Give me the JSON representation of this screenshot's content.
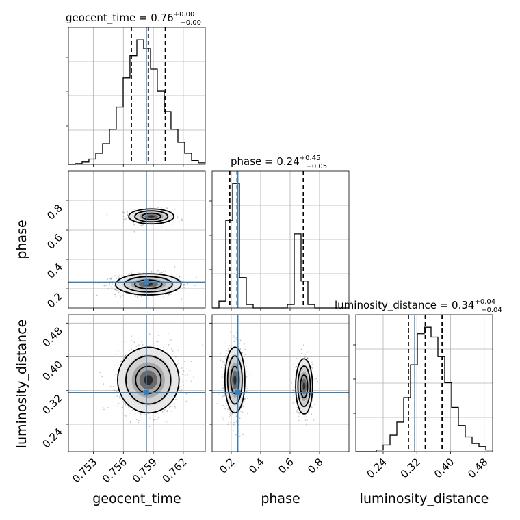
{
  "chart_data": {
    "type": "corner",
    "parameters": [
      "geocent_time",
      "phase",
      "luminosity_distance"
    ],
    "truths": {
      "geocent_time": 0.7583,
      "phase": 0.245,
      "luminosity_distance": 0.315
    },
    "colors": {
      "truth": "#3a7fb8",
      "contour": "#000000",
      "grid": "#b0b0b0"
    },
    "axes": {
      "geocent_time": {
        "range": [
          0.7505,
          0.7642
        ],
        "ticks": [
          0.753,
          0.756,
          0.759,
          0.762
        ],
        "tick_labels": [
          "0.753",
          "0.756",
          "0.759",
          "0.762"
        ]
      },
      "phase": {
        "range": [
          0.07,
          1.0
        ],
        "ticks": [
          0.2,
          0.4,
          0.6,
          0.8
        ],
        "tick_labels": [
          "0.2",
          "0.4",
          "0.6",
          "0.8"
        ]
      },
      "luminosity_distance": {
        "range": [
          0.175,
          0.5
        ],
        "ticks": [
          0.24,
          0.32,
          0.4,
          0.48
        ],
        "tick_labels": [
          "0.24",
          "0.32",
          "0.40",
          "0.48"
        ]
      }
    },
    "marginals": [
      {
        "param": "geocent_time",
        "title_base": "geocent_time = 0.76",
        "title_sup": "+0.00",
        "title_sub": "−0.00",
        "quantiles": [
          0.7568,
          0.7585,
          0.7602
        ],
        "bin_edges": [
          0.7505,
          0.75118,
          0.75187,
          0.75255,
          0.75324,
          0.75392,
          0.75461,
          0.75529,
          0.75598,
          0.75666,
          0.75735,
          0.75803,
          0.75872,
          0.7594,
          0.76009,
          0.76077,
          0.76146,
          0.76214,
          0.76283,
          0.76351,
          0.7642
        ],
        "counts": [
          0,
          1,
          3,
          7,
          15,
          28,
          48,
          78,
          118,
          148,
          170,
          158,
          130,
          100,
          72,
          48,
          30,
          15,
          5,
          2
        ]
      },
      {
        "param": "phase",
        "title_base": "phase = 0.24",
        "title_sup": "+0.45",
        "title_sub": "−0.05",
        "quantiles": [
          0.19,
          0.24,
          0.69
        ],
        "bin_edges": [
          0.07,
          0.1165,
          0.163,
          0.2095,
          0.256,
          0.3025,
          0.349,
          0.3955,
          0.442,
          0.4885,
          0.535,
          0.5815,
          0.628,
          0.6745,
          0.721,
          0.7675,
          0.814,
          0.8605,
          0.907,
          0.9535,
          1.0
        ],
        "counts": [
          0,
          10,
          130,
          185,
          45,
          5,
          0,
          0,
          0,
          0,
          0,
          5,
          110,
          40,
          5,
          0,
          0,
          0,
          0,
          0
        ]
      },
      {
        "param": "luminosity_distance",
        "title_base": "luminosity_distance = 0.34",
        "title_sup": "+0.04",
        "title_sub": "−0.04",
        "quantiles": [
          0.3,
          0.34,
          0.38
        ],
        "bin_edges": [
          0.175,
          0.19125,
          0.2075,
          0.22375,
          0.24,
          0.25625,
          0.2725,
          0.28875,
          0.305,
          0.32125,
          0.3375,
          0.35375,
          0.37,
          0.38625,
          0.4025,
          0.41875,
          0.435,
          0.45125,
          0.4675,
          0.48375,
          0.5
        ],
        "counts": [
          0,
          0,
          0,
          1,
          4,
          10,
          18,
          33,
          53,
          72,
          76,
          70,
          58,
          42,
          27,
          16,
          9,
          5,
          3,
          1
        ]
      }
    ],
    "scatter_2d": [
      {
        "x": "geocent_time",
        "y": "phase",
        "clusters": [
          {
            "cx": 0.7588,
            "cy": 0.692,
            "sx": 0.0011,
            "sy": 0.025,
            "n": 500
          },
          {
            "cx": 0.7585,
            "cy": 0.23,
            "sx": 0.0016,
            "sy": 0.035,
            "n": 1000
          }
        ]
      },
      {
        "x": "geocent_time",
        "y": "luminosity_distance",
        "clusters": [
          {
            "cx": 0.7585,
            "cy": 0.345,
            "sx": 0.0015,
            "sy": 0.038,
            "n": 1100
          }
        ]
      },
      {
        "x": "phase",
        "y": "luminosity_distance",
        "clusters": [
          {
            "cx": 0.225,
            "cy": 0.345,
            "sx": 0.033,
            "sy": 0.038,
            "n": 1100
          },
          {
            "cx": 0.695,
            "cy": 0.33,
            "sx": 0.028,
            "sy": 0.032,
            "n": 600
          }
        ]
      }
    ]
  }
}
